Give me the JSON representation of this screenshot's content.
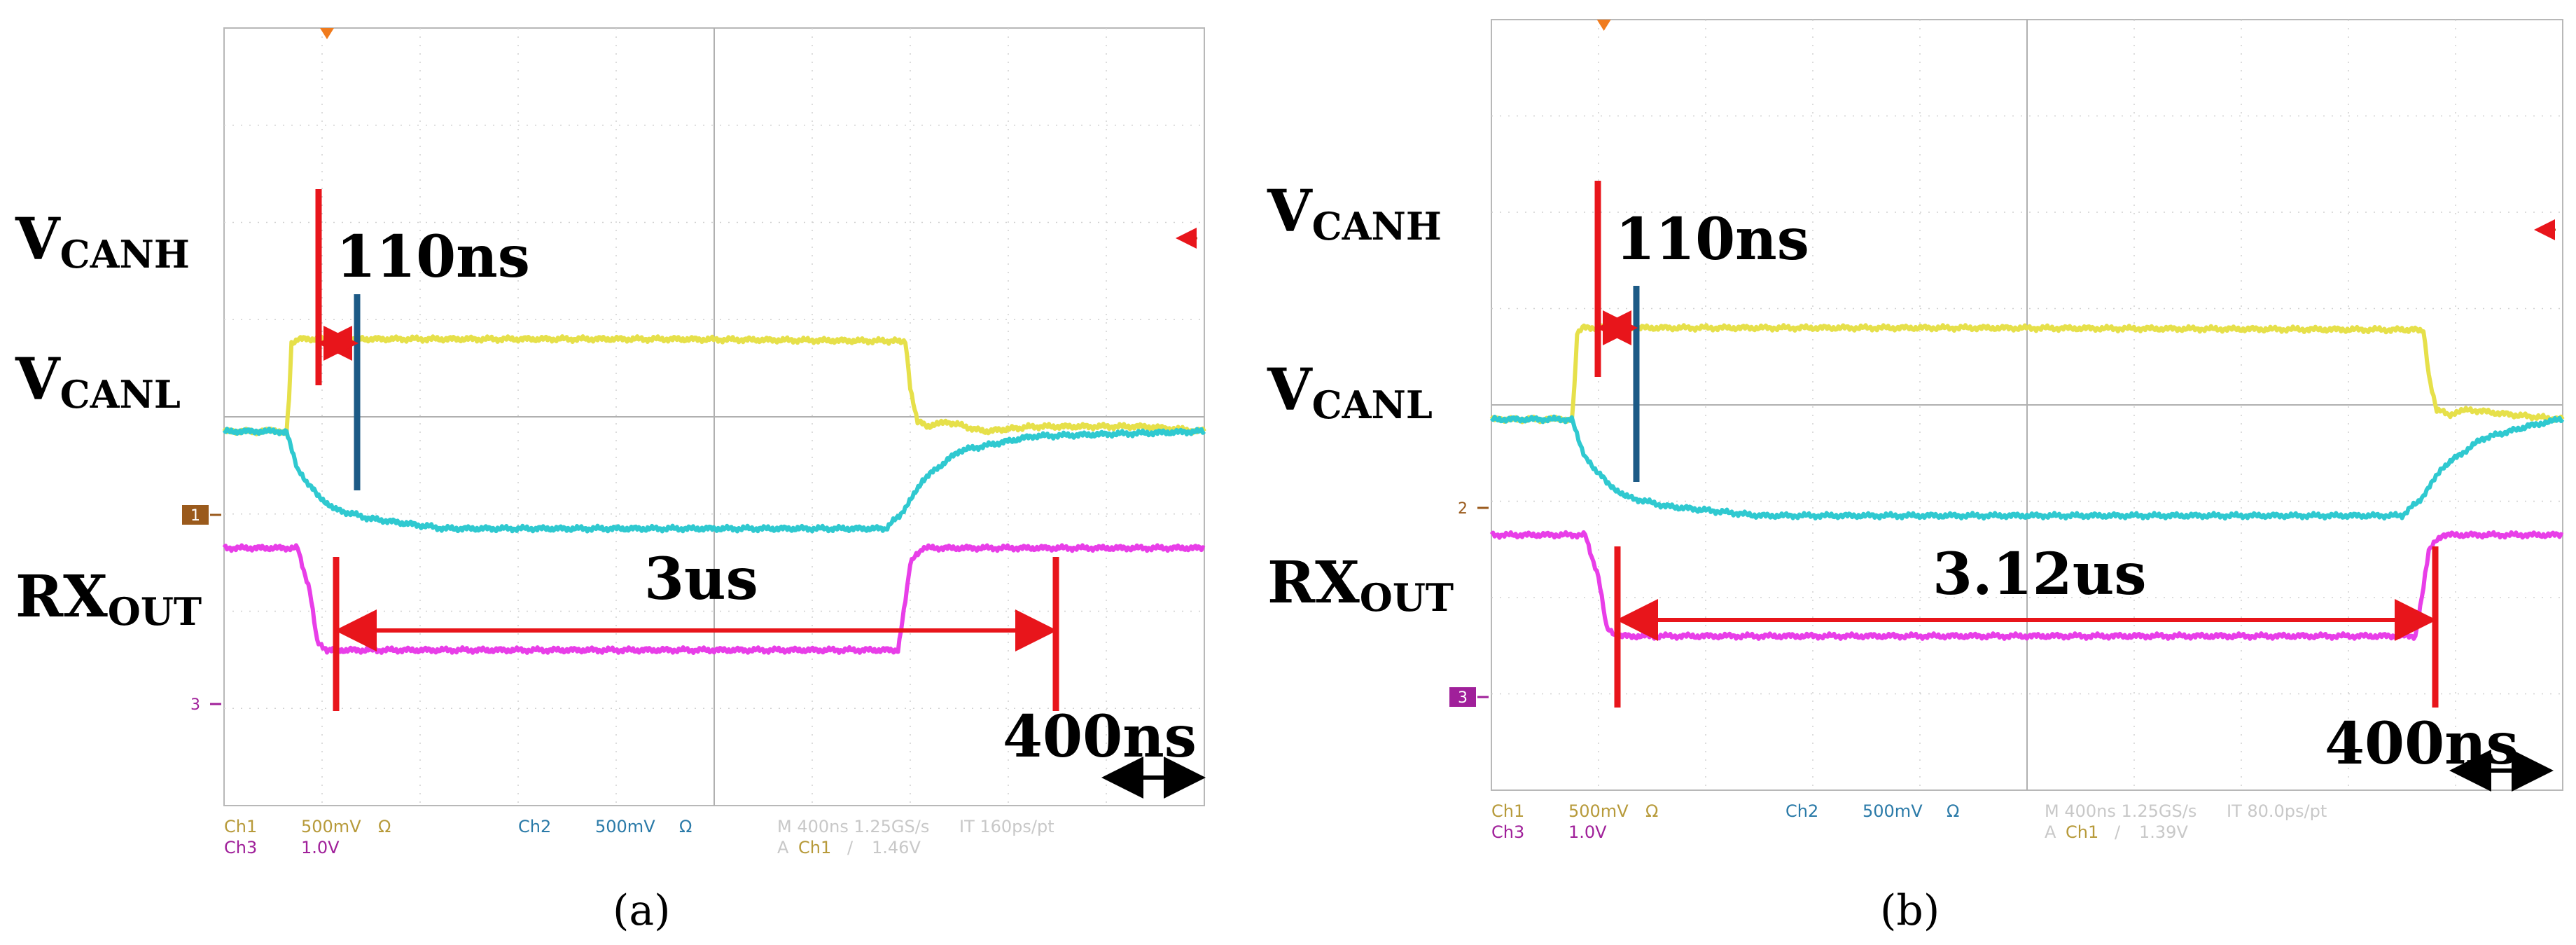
{
  "chart_data": [
    {
      "type": "line",
      "subfig_label": "(a)",
      "timebase_label": "400ns",
      "annotations": {
        "prop_delay": "110ns",
        "pulse_width": "3us"
      },
      "signal_labels": [
        {
          "main": "V",
          "sub": "CANH"
        },
        {
          "main": "V",
          "sub": "CANL"
        },
        {
          "main": "RX",
          "sub": "OUT"
        }
      ],
      "channel_markers": {
        "left_mid": "1",
        "left_low": "3"
      },
      "readout": {
        "row1": [
          "Ch1",
          "500mV",
          "Ω",
          "Ch2",
          "500mV",
          "Ω",
          "M 400ns 1.25GS/s",
          "IT 160ps/pt"
        ],
        "row2": [
          "Ch3",
          "1.0V",
          "A",
          "Ch1",
          "/",
          "1.46V"
        ]
      },
      "x_unit": "ns",
      "xlim": [
        0,
        4000
      ],
      "divisions": {
        "x": 10,
        "y": 8
      },
      "series": [
        {
          "color": "#e6e04a",
          "x": [
            0,
            150,
            255,
            265,
            275,
            300,
            1800,
            2700,
            2780,
            2800,
            2830,
            2880,
            2950,
            3100,
            3300,
            3750,
            4000
          ],
          "y": [
            -0.15,
            -0.15,
            -0.15,
            0.2,
            0.75,
            0.8,
            0.8,
            0.78,
            0.78,
            0.3,
            -0.05,
            -0.1,
            -0.05,
            -0.15,
            -0.1,
            -0.1,
            -0.15
          ]
        },
        {
          "color": "#2fc9d0",
          "x": [
            0,
            255,
            300,
            380,
            450,
            600,
            900,
            1500,
            2700,
            2780,
            2850,
            3000,
            3300,
            4000
          ],
          "y": [
            -0.15,
            -0.15,
            -0.55,
            -0.8,
            -0.95,
            -1.05,
            -1.15,
            -1.15,
            -1.15,
            -0.95,
            -0.65,
            -0.35,
            -0.2,
            -0.15
          ]
        },
        {
          "color": "#e83ee8",
          "x": [
            0,
            300,
            350,
            380,
            420,
            2750,
            2780,
            2800,
            2850,
            4000
          ],
          "y": [
            -1.35,
            -1.35,
            -1.8,
            -2.3,
            -2.4,
            -2.4,
            -1.9,
            -1.5,
            -1.35,
            -1.35
          ]
        }
      ]
    },
    {
      "type": "line",
      "subfig_label": "(b)",
      "timebase_label": "400ns",
      "annotations": {
        "prop_delay": "110ns",
        "pulse_width": "3.12us"
      },
      "signal_labels": [
        {
          "main": "V",
          "sub": "CANH"
        },
        {
          "main": "V",
          "sub": "CANL"
        },
        {
          "main": "RX",
          "sub": "OUT"
        }
      ],
      "channel_markers": {
        "left_mid": "2",
        "left_low": "3"
      },
      "readout": {
        "row1": [
          "Ch1",
          "500mV",
          "Ω",
          "Ch2",
          "500mV",
          "Ω",
          "M 400ns 1.25GS/s",
          "IT 80.0ps/pt"
        ],
        "row2": [
          "Ch3",
          "1.0V",
          "A",
          "Ch1",
          "/",
          "1.39V"
        ]
      },
      "x_unit": "ns",
      "xlim": [
        0,
        4000
      ],
      "divisions": {
        "x": 10,
        "y": 8
      },
      "series": [
        {
          "color": "#e6e04a",
          "x": [
            0,
            200,
            300,
            310,
            320,
            340,
            1800,
            3400,
            3480,
            3500,
            3530,
            3580,
            3650,
            3800,
            4000
          ],
          "y": [
            -0.15,
            -0.15,
            -0.15,
            0.2,
            0.75,
            0.8,
            0.8,
            0.78,
            0.78,
            0.3,
            -0.05,
            -0.1,
            -0.05,
            -0.1,
            -0.15
          ]
        },
        {
          "color": "#2fc9d0",
          "x": [
            0,
            300,
            350,
            430,
            500,
            650,
            1000,
            2000,
            3400,
            3480,
            3550,
            3700,
            3900,
            4000
          ],
          "y": [
            -0.15,
            -0.15,
            -0.55,
            -0.8,
            -0.95,
            -1.05,
            -1.15,
            -1.15,
            -1.15,
            -0.95,
            -0.65,
            -0.35,
            -0.2,
            -0.15
          ]
        },
        {
          "color": "#e83ee8",
          "x": [
            0,
            350,
            400,
            430,
            470,
            3450,
            3480,
            3500,
            3550,
            4000
          ],
          "y": [
            -1.35,
            -1.35,
            -1.8,
            -2.3,
            -2.4,
            -2.4,
            -1.9,
            -1.5,
            -1.35,
            -1.35
          ]
        }
      ]
    }
  ]
}
